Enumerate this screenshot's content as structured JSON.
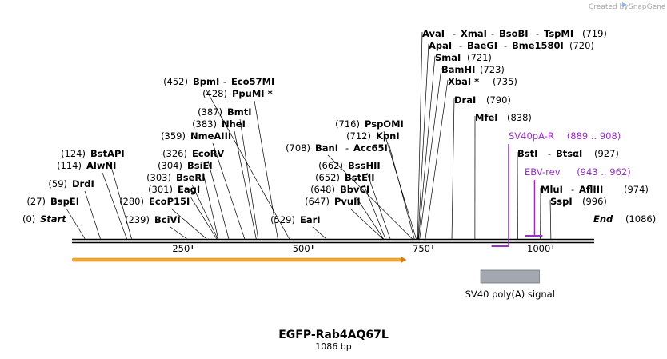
{
  "credit": {
    "prefix": "Created by",
    "brand": "SnapGene"
  },
  "title": "EGFP-Rab4AQ67L",
  "length_label": "1086 bp",
  "sequence_length": 1086,
  "ruler": {
    "ticks": [
      250,
      500,
      750,
      1000
    ]
  },
  "ends": {
    "start_pos": "(0)",
    "start_label": "Start",
    "end_label": "End",
    "end_pos": "(1086)"
  },
  "feature": {
    "label": "SV40 poly(A) signal",
    "start": 850,
    "end": 972,
    "color": "#a3a8b0"
  },
  "arrow": {
    "start": 1,
    "end": 696,
    "color": "#f0a830"
  },
  "enzymes": [
    {
      "pos": 27,
      "pos_text": "(27)",
      "names": [
        "BspEI"
      ]
    },
    {
      "pos": 59,
      "pos_text": "(59)",
      "names": [
        "DrdI"
      ]
    },
    {
      "pos": 114,
      "pos_text": "(114)",
      "names": [
        "AlwNI"
      ]
    },
    {
      "pos": 124,
      "pos_text": "(124)",
      "names": [
        "BstAPI"
      ]
    },
    {
      "pos": 239,
      "pos_text": "(239)",
      "names": [
        "BciVI"
      ]
    },
    {
      "pos": 280,
      "pos_text": "(280)",
      "names": [
        "EcoP15I"
      ]
    },
    {
      "pos": 301,
      "pos_text": "(301)",
      "names": [
        "EagI"
      ]
    },
    {
      "pos": 303,
      "pos_text": "(303)",
      "names": [
        "BseRI"
      ]
    },
    {
      "pos": 304,
      "pos_text": "(304)",
      "names": [
        "BsiEI"
      ]
    },
    {
      "pos": 326,
      "pos_text": "(326)",
      "names": [
        "EcoRV"
      ]
    },
    {
      "pos": 359,
      "pos_text": "(359)",
      "names": [
        "NmeAIII"
      ]
    },
    {
      "pos": 383,
      "pos_text": "(383)",
      "names": [
        "NheI"
      ]
    },
    {
      "pos": 387,
      "pos_text": "(387)",
      "names": [
        "BmtI"
      ]
    },
    {
      "pos": 428,
      "pos_text": "(428)",
      "names": [
        "PpuMI *"
      ]
    },
    {
      "pos": 452,
      "pos_text": "(452)",
      "names": [
        "BpmI",
        "Eco57MI"
      ]
    },
    {
      "pos": 529,
      "pos_text": "(529)",
      "names": [
        "EarI"
      ]
    },
    {
      "pos": 647,
      "pos_text": "(647)",
      "names": [
        "PvuII"
      ]
    },
    {
      "pos": 648,
      "pos_text": "(648)",
      "names": [
        "BbvCI"
      ]
    },
    {
      "pos": 652,
      "pos_text": "(652)",
      "names": [
        "BstEII"
      ]
    },
    {
      "pos": 662,
      "pos_text": "(662)",
      "names": [
        "BssHII"
      ]
    },
    {
      "pos": 708,
      "pos_text": "(708)",
      "names": [
        "BanI",
        "Acc65I"
      ]
    },
    {
      "pos": 712,
      "pos_text": "(712)",
      "names": [
        "KpnI"
      ]
    },
    {
      "pos": 716,
      "pos_text": "(716)",
      "names": [
        "PspOMI"
      ]
    },
    {
      "pos": 719,
      "pos_text": "(719)",
      "names": [
        "AvaI",
        "XmaI",
        "BsoBI",
        "TspMI"
      ]
    },
    {
      "pos": 720,
      "pos_text": "(720)",
      "names": [
        "ApaI",
        "BaeGI",
        "Bme1580I"
      ]
    },
    {
      "pos": 721,
      "pos_text": "(721)",
      "names": [
        "SmaI"
      ]
    },
    {
      "pos": 723,
      "pos_text": "(723)",
      "names": [
        "BamHI"
      ]
    },
    {
      "pos": 735,
      "pos_text": "(735)",
      "names": [
        "XbaI *"
      ]
    },
    {
      "pos": 790,
      "pos_text": "(790)",
      "names": [
        "DraI"
      ]
    },
    {
      "pos": 838,
      "pos_text": "(838)",
      "names": [
        "MfeI"
      ]
    },
    {
      "pos": 927,
      "pos_text": "(927)",
      "names": [
        "BstI",
        "BtsαI"
      ]
    },
    {
      "pos": 974,
      "pos_text": "(974)",
      "names": [
        "MluI",
        "AflIII"
      ]
    },
    {
      "pos": 996,
      "pos_text": "(996)",
      "names": [
        "SspI"
      ]
    }
  ],
  "primers": [
    {
      "name": "SV40pA-R",
      "range": "(889 .. 908)",
      "start": 889,
      "end": 908,
      "direction": "reverse",
      "color": "#9b30c8"
    },
    {
      "name": "EBV-rev",
      "range": "(943 .. 962)",
      "start": 943,
      "end": 962,
      "direction": "reverse",
      "color": "#9b30c8"
    }
  ]
}
